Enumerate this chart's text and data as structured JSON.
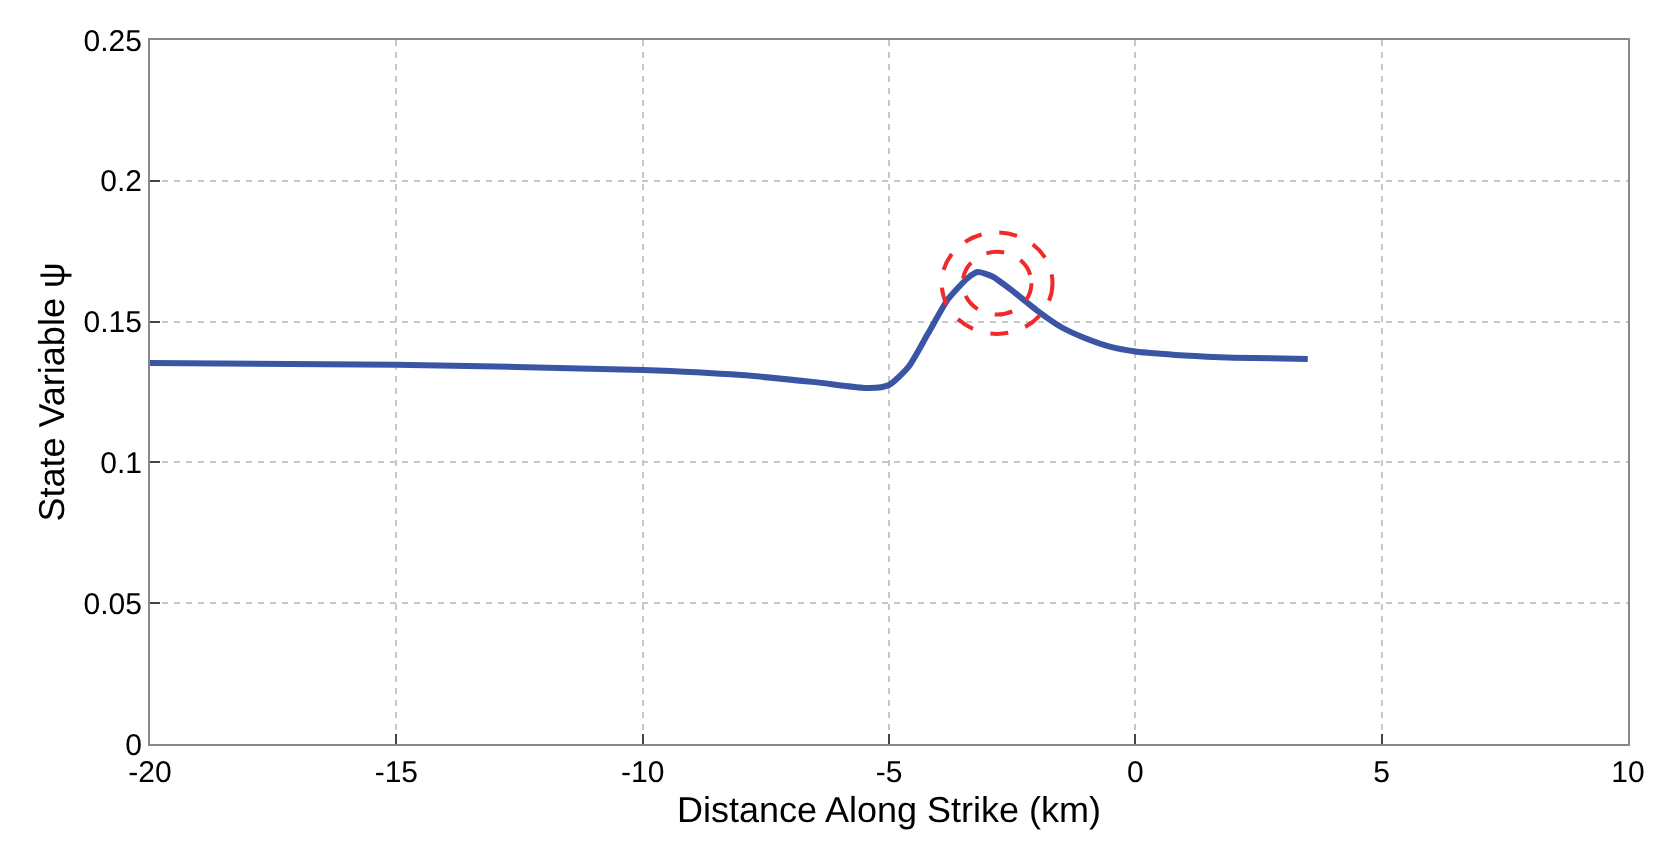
{
  "chart_data": {
    "type": "line",
    "xlabel": "Distance Along Strike (km)",
    "ylabel": "State Variable ψ",
    "x": [
      -20,
      -15,
      -10,
      -8,
      -6.5,
      -5.4,
      -5,
      -4.6,
      -4.2,
      -3.8,
      -3.4,
      -3.2,
      -2.9,
      -2.5,
      -2,
      -1.5,
      -1,
      -0.5,
      0,
      1,
      2,
      3.5
    ],
    "series": [
      {
        "color": "#3a55a4",
        "values": [
          0.1353,
          0.1347,
          0.1328,
          0.131,
          0.1285,
          0.1264,
          0.1275,
          0.134,
          0.146,
          0.158,
          0.1655,
          0.1676,
          0.166,
          0.161,
          0.154,
          0.148,
          0.144,
          0.141,
          0.1394,
          0.138,
          0.1372,
          0.1367
        ]
      }
    ],
    "xlim": [
      -20,
      10
    ],
    "xticks": [
      -20,
      -15,
      -10,
      -5,
      0,
      5,
      10
    ],
    "ylim": [
      0,
      0.25
    ],
    "yticks": [
      0,
      0.05,
      0.1,
      0.15,
      0.2,
      0.25
    ],
    "grid": true,
    "line_style": "solid",
    "marker": "none"
  }
}
